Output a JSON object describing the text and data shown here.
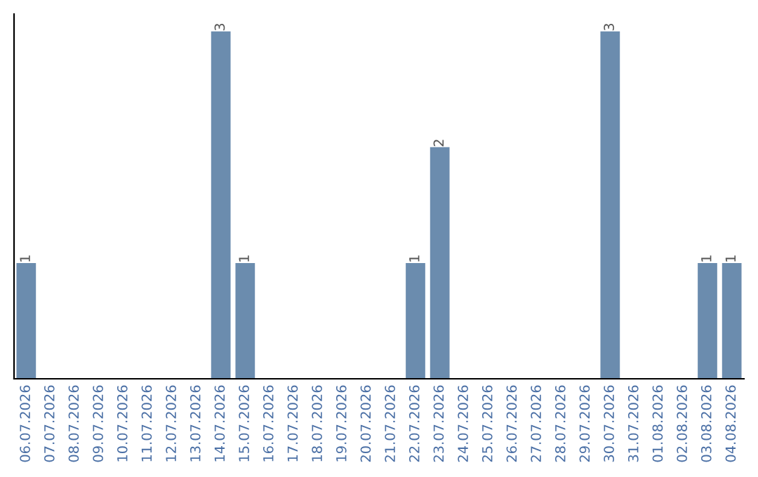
{
  "chart_data": {
    "type": "bar",
    "categories": [
      "06.07.2026",
      "07.07.2026",
      "08.07.2026",
      "09.07.2026",
      "10.07.2026",
      "11.07.2026",
      "12.07.2026",
      "13.07.2026",
      "14.07.2026",
      "15.07.2026",
      "16.07.2026",
      "17.07.2026",
      "18.07.2026",
      "19.07.2026",
      "20.07.2026",
      "21.07.2026",
      "22.07.2026",
      "23.07.2026",
      "24.07.2026",
      "25.07.2026",
      "26.07.2026",
      "27.07.2026",
      "28.07.2026",
      "29.07.2026",
      "30.07.2026",
      "31.07.2026",
      "01.08.2026",
      "02.08.2026",
      "03.08.2026",
      "04.08.2026"
    ],
    "values": [
      1,
      0,
      0,
      0,
      0,
      0,
      0,
      0,
      3,
      1,
      0,
      0,
      0,
      0,
      0,
      0,
      1,
      2,
      0,
      0,
      0,
      0,
      0,
      0,
      3,
      0,
      0,
      0,
      1,
      1
    ],
    "value_labels": [
      "1",
      null,
      null,
      null,
      null,
      null,
      null,
      null,
      "3",
      "1",
      null,
      null,
      null,
      null,
      null,
      null,
      "1",
      "2",
      null,
      null,
      null,
      null,
      null,
      null,
      "3",
      null,
      null,
      null,
      "1",
      "1"
    ],
    "color": "#6b8cae",
    "tick_labels": "x",
    "grid": false,
    "legend": false
  }
}
